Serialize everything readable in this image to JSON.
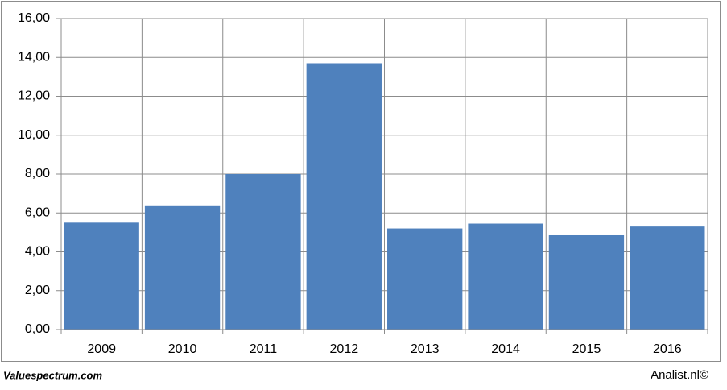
{
  "chart_data": {
    "type": "bar",
    "categories": [
      "2009",
      "2010",
      "2011",
      "2012",
      "2013",
      "2014",
      "2015",
      "2016"
    ],
    "values": [
      5.5,
      6.35,
      8.0,
      13.7,
      5.2,
      5.45,
      4.85,
      5.3
    ],
    "color": "#4f81bd",
    "ylim": [
      0,
      16
    ],
    "yticks": [
      {
        "value": 0,
        "label": "0,00"
      },
      {
        "value": 2,
        "label": "2,00"
      },
      {
        "value": 4,
        "label": "4,00"
      },
      {
        "value": 6,
        "label": "6,00"
      },
      {
        "value": 8,
        "label": "8,00"
      },
      {
        "value": 10,
        "label": "10,00"
      },
      {
        "value": 12,
        "label": "12,00"
      },
      {
        "value": 14,
        "label": "14,00"
      },
      {
        "value": 16,
        "label": "16,00"
      }
    ],
    "grid": true
  },
  "footer": {
    "left": "Valuespectrum.com",
    "right": "Analist.nl©"
  }
}
